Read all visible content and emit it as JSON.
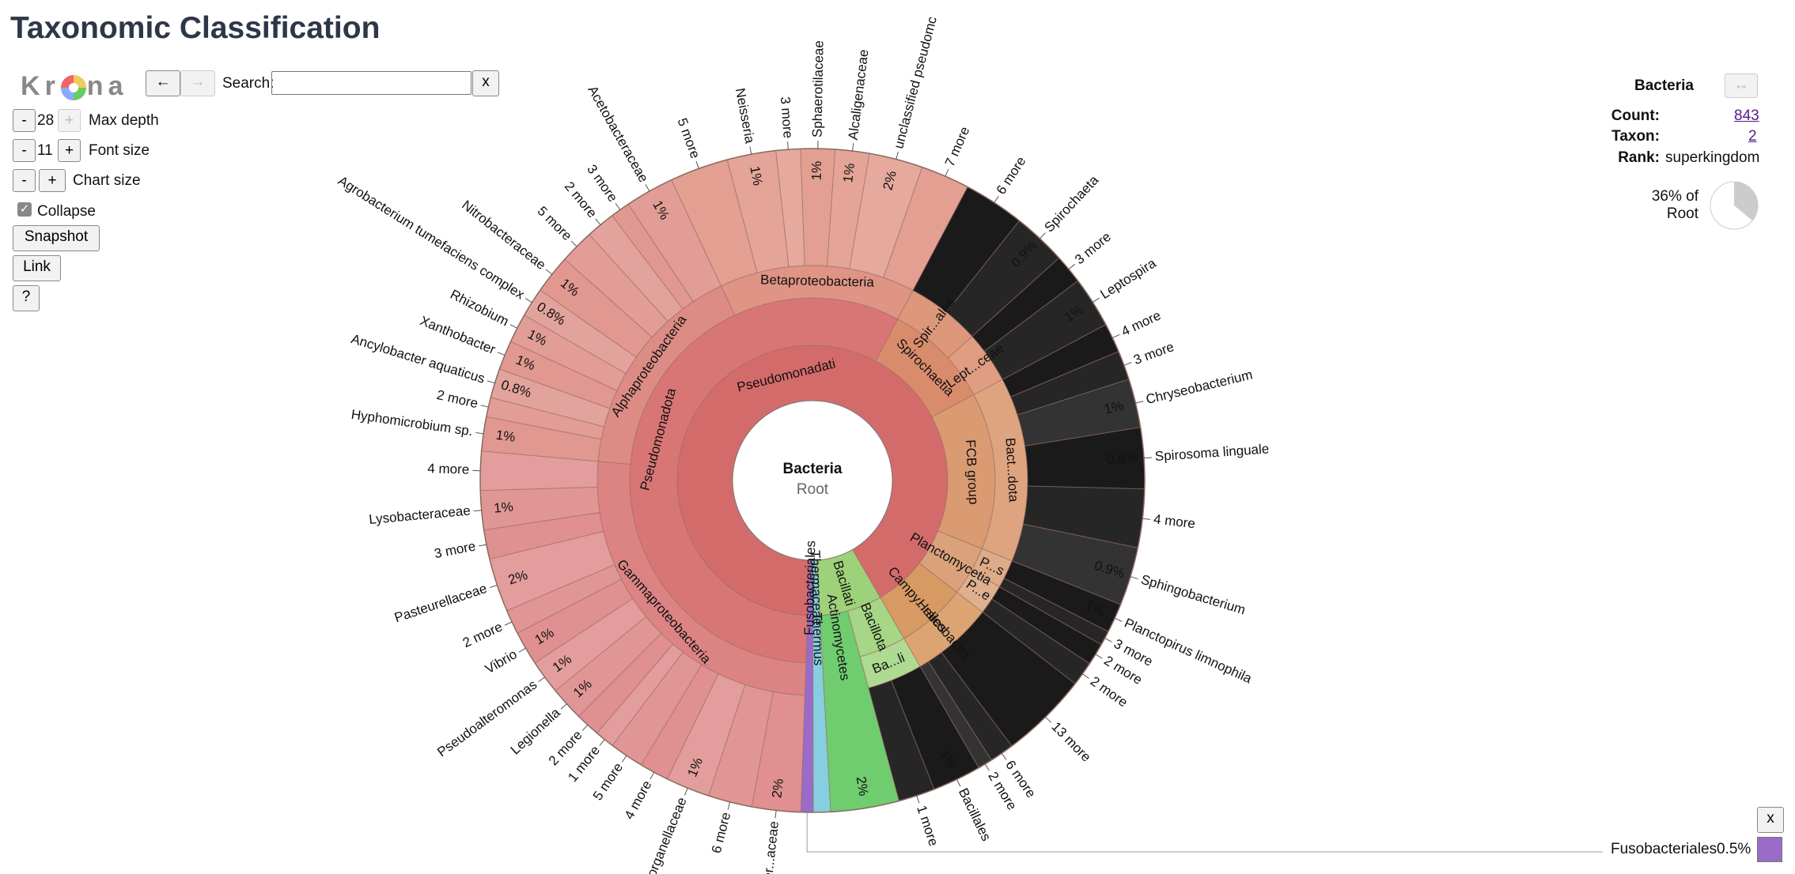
{
  "header": {
    "title": "Taxonomic Classification"
  },
  "controls": {
    "logo": [
      "K",
      "r",
      "n",
      "a"
    ],
    "back": "←",
    "forward": "→",
    "search_label": "Search:",
    "search_clear": "x",
    "max_depth": {
      "minus": "-",
      "value": "28",
      "plus": "+",
      "label": "Max depth"
    },
    "font_size": {
      "minus": "-",
      "value": "11",
      "plus": "+",
      "label": "Font size"
    },
    "chart_size": {
      "minus": "-",
      "plus": "+",
      "label": "Chart size"
    },
    "collapse": "Collapse",
    "snapshot": "Snapshot",
    "link": "Link",
    "help": "?"
  },
  "details": {
    "swap": "↔",
    "count_label": "Count:",
    "taxon_label": "Taxon:",
    "taxon": "2",
    "rank_label": "Rank:",
    "rank": "superkingdom",
    "share": 36,
    "share_label": "36% of",
    "share_of": "Root"
  },
  "hover": {
    "close": "x",
    "percent": "0.5%"
  },
  "chart_data": {
    "type": "sunburst",
    "center_subtitle": "Root",
    "root": {
      "name": "Bacteria",
      "value": 843,
      "children": [
        {
          "name": "Pseudomonadati",
          "value": 768,
          "color": "#d46b6b",
          "children": [
            {
              "name": "Pseudomonadota",
              "value": 482,
              "color": "#d87676",
              "children": [
                {
                  "name": "Gammaproteobacteria",
                  "value": 218,
                  "color": "#dc8484",
                  "children": [
                    {
                      "name": "Enter...aceae",
                      "value": 20,
                      "percent": "2%"
                    },
                    {
                      "name": "6 more",
                      "value": 18
                    },
                    {
                      "name": "Morganellaceae",
                      "value": 18,
                      "percent": "1%"
                    },
                    {
                      "name": "4 more",
                      "value": 12
                    },
                    {
                      "name": "5 more",
                      "value": 14
                    },
                    {
                      "name": "1 more",
                      "value": 8
                    },
                    {
                      "name": "2 more",
                      "value": 10
                    },
                    {
                      "name": "Legionella",
                      "value": 14,
                      "percent": "1%"
                    },
                    {
                      "name": "Pseudoalteromonas",
                      "value": 14,
                      "percent": "1%"
                    },
                    {
                      "name": "Vibrio",
                      "value": 14,
                      "percent": "1%"
                    },
                    {
                      "name": "2 more",
                      "value": 10
                    },
                    {
                      "name": "Pasteurellaceae",
                      "value": 22,
                      "percent": "2%"
                    },
                    {
                      "name": "3 more",
                      "value": 12
                    },
                    {
                      "name": "Lysobacteraceae",
                      "value": 16,
                      "percent": "1%"
                    },
                    {
                      "name": "4 more",
                      "value": 16
                    }
                  ]
                },
                {
                  "name": "Alphaproteobacteria",
                  "value": 140,
                  "color": "#dc8c84",
                  "children": [
                    {
                      "name": "Hyphomicrobium sp.",
                      "value": 14,
                      "percent": "1%"
                    },
                    {
                      "name": "2 more",
                      "value": 8
                    },
                    {
                      "name": "Ancylobacter aquaticus",
                      "value": 12,
                      "percent": "0.8%"
                    },
                    {
                      "name": "Xanthobacter",
                      "value": 12,
                      "percent": "1%"
                    },
                    {
                      "name": "Rhizobium",
                      "value": 12,
                      "percent": "1%"
                    },
                    {
                      "name": "Agrobacterium tumefaciens complex",
                      "value": 12,
                      "percent": "0.8%"
                    },
                    {
                      "name": "Nitrobacteraceae",
                      "value": 16,
                      "percent": "1%"
                    },
                    {
                      "name": "5 more",
                      "value": 14
                    },
                    {
                      "name": "2 more",
                      "value": 12
                    },
                    {
                      "name": "3 more",
                      "value": 8
                    },
                    {
                      "name": "Acetobacteraceae",
                      "value": 20,
                      "percent": "1%"
                    }
                  ]
                },
                {
                  "name": "Betaproteobacteria",
                  "value": 124,
                  "color": "#df9486",
                  "children": [
                    {
                      "name": "5 more",
                      "value": 24
                    },
                    {
                      "name": "Neisseria",
                      "value": 20,
                      "percent": "1%"
                    },
                    {
                      "name": "3 more",
                      "value": 10
                    },
                    {
                      "name": "Sphaerotilaceae",
                      "value": 14,
                      "percent": "1%"
                    },
                    {
                      "name": "Alcaligenaceae",
                      "value": 14,
                      "percent": "1%"
                    },
                    {
                      "name": "unclassified pseudomc",
                      "value": 22,
                      "percent": "2%"
                    },
                    {
                      "name": "7 more",
                      "value": 20
                    }
                  ]
                }
              ]
            },
            {
              "name": "Spirochaetia",
              "value": 80,
              "color": "#d98c6c",
              "children": [
                {
                  "name": "Spir...ales",
                  "value": 47,
                  "children": [
                    {
                      "name": "6 more",
                      "value": 25
                    },
                    {
                      "name": "Spirochaeta",
                      "value": 22,
                      "percent": "0.9%"
                    }
                  ]
                },
                {
                  "name": "Lept...ceae",
                  "value": 33,
                  "children": [
                    {
                      "name": "3 more",
                      "value": 12
                    },
                    {
                      "name": "Leptospira",
                      "value": 21,
                      "percent": "1%"
                    }
                  ]
                }
              ]
            },
            {
              "name": "FCB group",
              "value": 117,
              "color": "#da9a72",
              "children": [
                {
                  "name": "Bact...dota",
                  "value": 117,
                  "children": [
                    {
                      "name": "4 more",
                      "value": 12
                    },
                    {
                      "name": "3 more",
                      "value": 12
                    },
                    {
                      "name": "Chryseobacterium",
                      "value": 20,
                      "percent": "1%"
                    },
                    {
                      "name": "Spirosoma linguale",
                      "value": 25,
                      "percent": "0.8%"
                    },
                    {
                      "name": "4 more",
                      "value": 24
                    },
                    {
                      "name": "Sphingobacterium",
                      "value": 24,
                      "percent": "0.9%"
                    }
                  ]
                }
              ]
            },
            {
              "name": "Planctomycetia",
              "value": 37,
              "color": "#d9a27a",
              "children": [
                {
                  "name": "P...s",
                  "value": 18,
                  "children": [
                    {
                      "name": "Planctopirus limnophila",
                      "value": 12,
                      "percent": "1%"
                    },
                    {
                      "name": "3 more",
                      "value": 6
                    }
                  ]
                },
                {
                  "name": "P...e",
                  "value": 19,
                  "children": [
                    {
                      "name": "2 more",
                      "value": 9
                    },
                    {
                      "name": "2 more",
                      "value": 10
                    }
                  ]
                }
              ]
            },
            {
              "name": "Campy...rales",
              "value": 52,
              "color": "#d79a62",
              "children": [
                {
                  "name": "Helicobacter",
                  "value": 52,
                  "children": [
                    {
                      "name": "13 more",
                      "value": 36
                    },
                    {
                      "name": "6 more",
                      "value": 10
                    },
                    {
                      "name": "2 more",
                      "value": 6
                    }
                  ]
                }
              ]
            }
          ]
        },
        {
          "name": "Bacillati",
          "value": 63,
          "color": "#9ed27a",
          "children": [
            {
              "name": "Bacillota",
              "value": 35,
              "color": "#a6d686",
              "children": [
                {
                  "name": "Ba...li",
                  "value": 35,
                  "children": [
                    {
                      "name": "Bacillales",
                      "value": 20,
                      "percent": "1%"
                    },
                    {
                      "name": "1 more",
                      "value": 15
                    }
                  ]
                }
              ]
            },
            {
              "name": "Actinomycetes",
              "value": 28,
              "color": "#6fcc6f",
              "percent": "2%"
            }
          ]
        },
        {
          "name": "Thermaceae",
          "value": 7,
          "color": "#7ccfd8",
          "children": [
            {
              "name": "Thermus",
              "value": 7,
              "color": "#86cfe0"
            }
          ]
        },
        {
          "name": "Fusobacteriales",
          "value": 5,
          "color": "#9a6bc8"
        }
      ]
    }
  }
}
